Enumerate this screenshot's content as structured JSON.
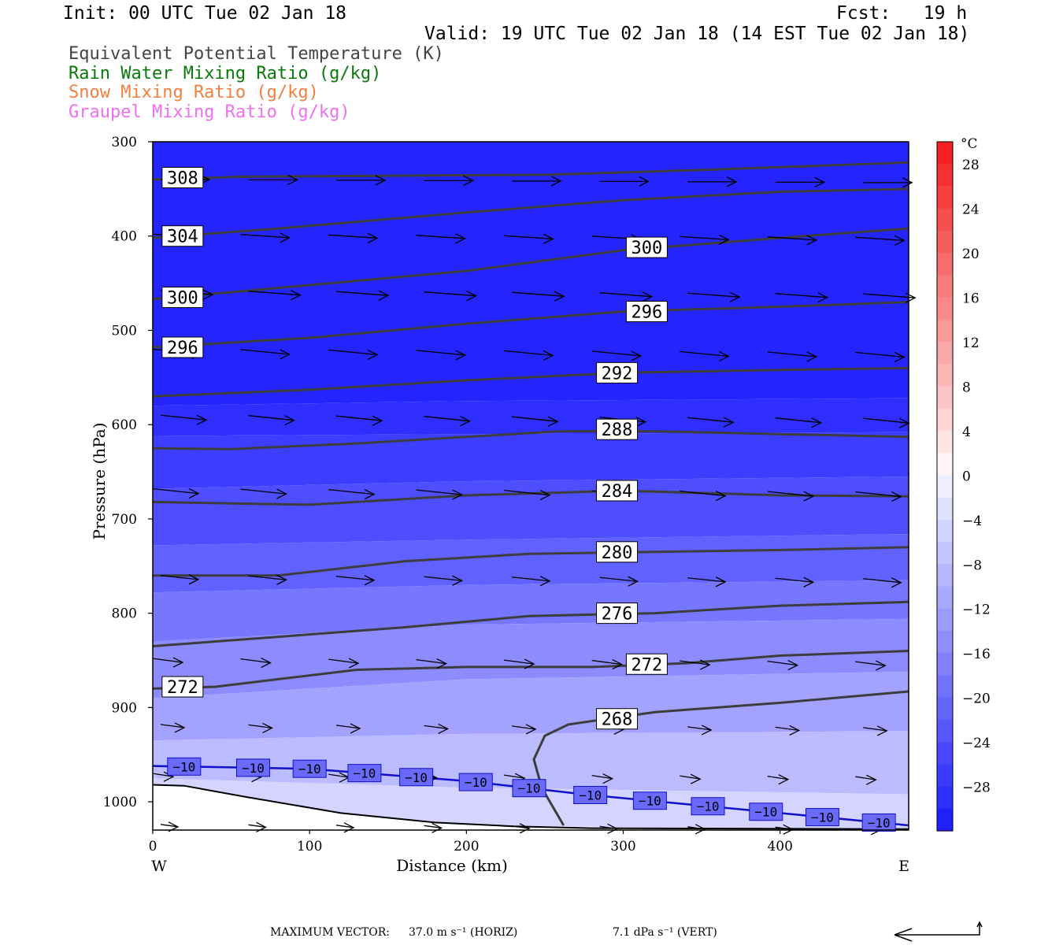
{
  "header": {
    "init": "Init: 00 UTC Tue 02 Jan 18",
    "fcst": "Fcst:   19 h",
    "valid": "Valid: 19 UTC Tue 02 Jan 18 (14 EST Tue 02 Jan 18)"
  },
  "fields": [
    {
      "label": "Equivalent Potential Temperature (K)",
      "color": "#444444"
    },
    {
      "label": "Rain Water Mixing Ratio (g/kg)",
      "color": "#0a7a0a"
    },
    {
      "label": "Snow Mixing Ratio (g/kg)",
      "color": "#f08040"
    },
    {
      "label": "Graupel Mixing Ratio (g/kg)",
      "color": "#f070f0"
    }
  ],
  "chart_data": {
    "type": "cross-section",
    "xlabel": "Distance (km)",
    "ylabel": "Pressure (hPa)",
    "xlim": [
      0,
      482
    ],
    "ylim": [
      300,
      1030
    ],
    "y_scale": "linear, inverted",
    "x_ticks": [
      0,
      100,
      200,
      300,
      400
    ],
    "y_ticks": [
      300,
      400,
      500,
      600,
      700,
      800,
      900,
      1000
    ],
    "x_end_labels": {
      "left": "W",
      "right": "E"
    },
    "temperature_colorbar": {
      "unit": "°C",
      "ticks": [
        28,
        24,
        20,
        16,
        12,
        8,
        4,
        0,
        -4,
        -8,
        -12,
        -16,
        -20,
        -24,
        -28
      ],
      "levels": [
        30,
        28,
        26,
        24,
        22,
        20,
        18,
        16,
        14,
        12,
        10,
        8,
        6,
        4,
        2,
        0,
        -2,
        -4,
        -6,
        -8,
        -10,
        -12,
        -14,
        -16,
        -18,
        -20,
        -22,
        -24,
        -26,
        -28,
        -30,
        -32
      ]
    },
    "theta_e_contours": [
      {
        "value": 308,
        "x": [
          0,
          60,
          150,
          250,
          350,
          482
        ],
        "p": [
          340,
          337,
          336,
          335,
          330,
          322
        ]
      },
      {
        "value": 304,
        "x": [
          0,
          80,
          200,
          300,
          400,
          482
        ],
        "p": [
          402,
          392,
          375,
          362,
          353,
          350
        ]
      },
      {
        "value": 300,
        "x": [
          0,
          100,
          200,
          300,
          400,
          482
        ],
        "p": [
          467,
          452,
          437,
          415,
          402,
          392
        ]
      },
      {
        "value": 296,
        "x": [
          0,
          100,
          200,
          300,
          400,
          482
        ],
        "p": [
          518,
          508,
          493,
          480,
          475,
          470
        ]
      },
      {
        "value": 292,
        "x": [
          0,
          100,
          200,
          300,
          400,
          482
        ],
        "p": [
          570,
          563,
          553,
          545,
          542,
          540
        ]
      },
      {
        "value": 288,
        "x": [
          0,
          50,
          130,
          200,
          260,
          320,
          400,
          482
        ],
        "p": [
          625,
          626,
          620,
          613,
          607,
          607,
          610,
          613
        ]
      },
      {
        "value": 284,
        "x": [
          0,
          100,
          200,
          300,
          400,
          482
        ],
        "p": [
          682,
          685,
          675,
          670,
          675,
          676
        ]
      },
      {
        "value": 280,
        "x": [
          0,
          80,
          160,
          240,
          320,
          400,
          482
        ],
        "p": [
          760,
          760,
          745,
          737,
          735,
          733,
          730
        ]
      },
      {
        "value": 276,
        "x": [
          0,
          80,
          160,
          240,
          320,
          400,
          482
        ],
        "p": [
          835,
          825,
          815,
          803,
          800,
          792,
          788
        ]
      },
      {
        "value": 272,
        "x": [
          0,
          40,
          90,
          130,
          200,
          280,
          340,
          400,
          482
        ],
        "p": [
          880,
          878,
          868,
          860,
          857,
          857,
          853,
          845,
          840
        ]
      },
      {
        "value": 268,
        "x": [
          262,
          248,
          243,
          250,
          265,
          320,
          400,
          482
        ],
        "p": [
          1025,
          985,
          955,
          930,
          918,
          905,
          895,
          883
        ]
      }
    ],
    "isotherm_minus_10": {
      "value": -10,
      "x": [
        0,
        100,
        200,
        280,
        400,
        482
      ],
      "p": [
        962,
        965,
        978,
        993,
        1012,
        1025
      ]
    },
    "wind_vector_max": {
      "horiz": "37.0 m s⁻¹ (HORIZ)",
      "vert": "7.1 dPa s⁻¹ (VERT)"
    }
  },
  "footer": {
    "label": "MAXIMUM VECTOR:",
    "horiz": "37.0 m s⁻¹ (HORIZ)",
    "vert": "7.1 dPa s⁻¹ (VERT)"
  }
}
